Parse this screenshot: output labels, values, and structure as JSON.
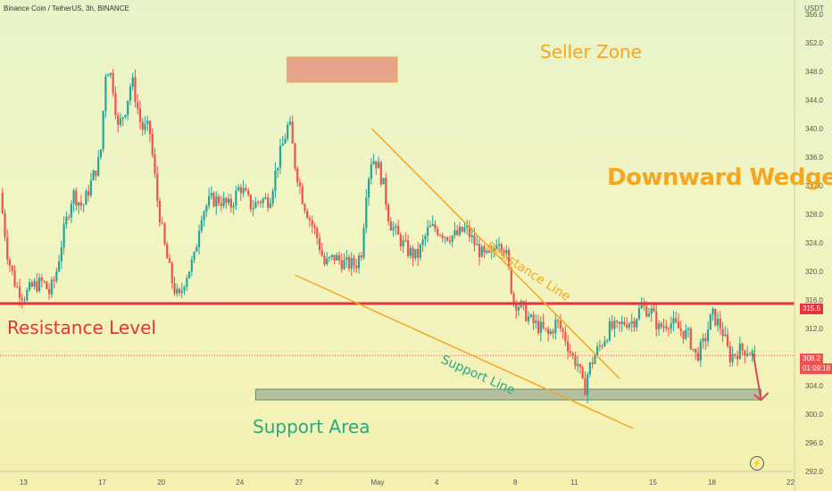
{
  "header": {
    "title": "Binance Coin / TetherUS, 3h, BINANCE"
  },
  "annotations": {
    "seller_zone": "Seller Zone",
    "downward_wedge": "Downward Wedge",
    "resistance_level": "Resistance Level",
    "support_area": "Support Area",
    "resistance_line": "Resistance Line",
    "support_line": "Support Line"
  },
  "price_tags": {
    "resistance": "315.5",
    "current": "308.2",
    "countdown": "01:09:18"
  },
  "colors": {
    "up": "#26a69a",
    "down": "#ef5350",
    "resistance": "#e8323c",
    "wedge": "#f5a623",
    "seller_zone": "#e8957f",
    "support_zone": "#a9b89a",
    "arrow": "#d94a57"
  },
  "icons": {
    "alert": "lightning-icon"
  },
  "chart_data": {
    "type": "candlestick",
    "title": "Binance Coin / TetherUS, 3h, BINANCE",
    "y_unit": "USDT",
    "ylim": [
      292,
      358
    ],
    "y_ticks": [
      356.0,
      352.0,
      348.0,
      344.0,
      340.0,
      336.0,
      332.0,
      328.0,
      324.0,
      320.0,
      316.0,
      312.0,
      308.0,
      304.0,
      300.0,
      296.0,
      292.0
    ],
    "x_ticks": [
      "13",
      "17",
      "20",
      "24",
      "27",
      "May",
      "4",
      "8",
      "11",
      "15",
      "18",
      "22"
    ],
    "x_tick_days": [
      0,
      4,
      7,
      11,
      14,
      18,
      21,
      25,
      28,
      32,
      35,
      39
    ],
    "x_range_days": [
      -1.2,
      39.2
    ],
    "close_path": [
      [
        -1.2,
        331
      ],
      [
        -0.8,
        322
      ],
      [
        -0.4,
        318
      ],
      [
        0,
        316.5
      ],
      [
        0.5,
        318
      ],
      [
        1,
        318.5
      ],
      [
        1.3,
        317
      ],
      [
        1.6,
        319
      ],
      [
        2,
        325
      ],
      [
        2.5,
        331
      ],
      [
        3,
        329
      ],
      [
        3.5,
        333
      ],
      [
        3.9,
        336
      ],
      [
        4.2,
        349
      ],
      [
        4.5,
        347
      ],
      [
        4.8,
        340
      ],
      [
        5.2,
        343
      ],
      [
        5.5,
        347
      ],
      [
        6,
        340
      ],
      [
        6.4,
        340
      ],
      [
        6.8,
        330
      ],
      [
        7.2,
        323
      ],
      [
        7.6,
        318
      ],
      [
        7.9,
        316
      ],
      [
        8.2,
        319
      ],
      [
        8.7,
        322
      ],
      [
        9,
        328
      ],
      [
        9.5,
        330
      ],
      [
        10,
        330
      ],
      [
        10.5,
        329
      ],
      [
        11,
        332
      ],
      [
        11.6,
        329
      ],
      [
        12,
        330
      ],
      [
        12.5,
        330
      ],
      [
        12.9,
        335
      ],
      [
        13.2,
        338
      ],
      [
        13.5,
        341
      ],
      [
        13.8,
        335
      ],
      [
        14.2,
        330
      ],
      [
        14.6,
        327
      ],
      [
        14.9,
        325
      ],
      [
        15.3,
        321
      ],
      [
        15.8,
        322
      ],
      [
        16.4,
        321
      ],
      [
        16.9,
        321
      ],
      [
        17.2,
        323
      ],
      [
        17.4,
        331
      ],
      [
        17.7,
        336
      ],
      [
        18,
        335
      ],
      [
        18.3,
        332
      ],
      [
        18.6,
        327
      ],
      [
        19,
        325
      ],
      [
        19.5,
        323
      ],
      [
        20,
        322
      ],
      [
        20.6,
        326
      ],
      [
        21,
        326
      ],
      [
        21.5,
        325
      ],
      [
        22,
        325
      ],
      [
        22.5,
        326
      ],
      [
        22.9,
        324
      ],
      [
        23.4,
        322
      ],
      [
        23.8,
        322
      ],
      [
        24.1,
        325
      ],
      [
        24.5,
        323
      ],
      [
        24.9,
        316
      ],
      [
        25.3,
        315
      ],
      [
        25.8,
        313
      ],
      [
        26.3,
        312
      ],
      [
        26.7,
        311
      ],
      [
        27.1,
        313
      ],
      [
        27.5,
        311
      ],
      [
        27.9,
        308
      ],
      [
        28.2,
        307
      ],
      [
        28.5,
        303
      ],
      [
        28.7,
        306
      ],
      [
        29,
        308
      ],
      [
        29.4,
        310
      ],
      [
        29.8,
        312
      ],
      [
        30.2,
        312
      ],
      [
        30.6,
        313
      ],
      [
        31,
        313
      ],
      [
        31.4,
        315
      ],
      [
        31.9,
        314.5
      ],
      [
        32.3,
        312
      ],
      [
        32.8,
        313
      ],
      [
        33.3,
        312
      ],
      [
        33.8,
        311
      ],
      [
        34.2,
        308
      ],
      [
        34.6,
        310
      ],
      [
        35,
        314
      ],
      [
        35.5,
        312
      ],
      [
        35.9,
        308
      ],
      [
        36.4,
        309
      ],
      [
        36.8,
        309
      ],
      [
        37.2,
        308.2
      ]
    ],
    "zones": [
      {
        "name": "Seller Zone",
        "days": [
          13.4,
          19
        ],
        "price": [
          346.5,
          350
        ]
      },
      {
        "name": "Support Area",
        "days": [
          11.8,
          37.5
        ],
        "price": [
          302,
          303.5
        ]
      }
    ],
    "lines": [
      {
        "name": "Resistance Level",
        "price": 315.5
      },
      {
        "name": "Resistance Line",
        "from": [
          17.7,
          340
        ],
        "to": [
          30.3,
          305
        ]
      },
      {
        "name": "Support Line",
        "from": [
          13.8,
          319.5
        ],
        "to": [
          31,
          298
        ]
      }
    ],
    "arrow": {
      "from": [
        37.1,
        308.5
      ],
      "to": [
        37.5,
        302
      ]
    },
    "last_price": 308.2
  }
}
